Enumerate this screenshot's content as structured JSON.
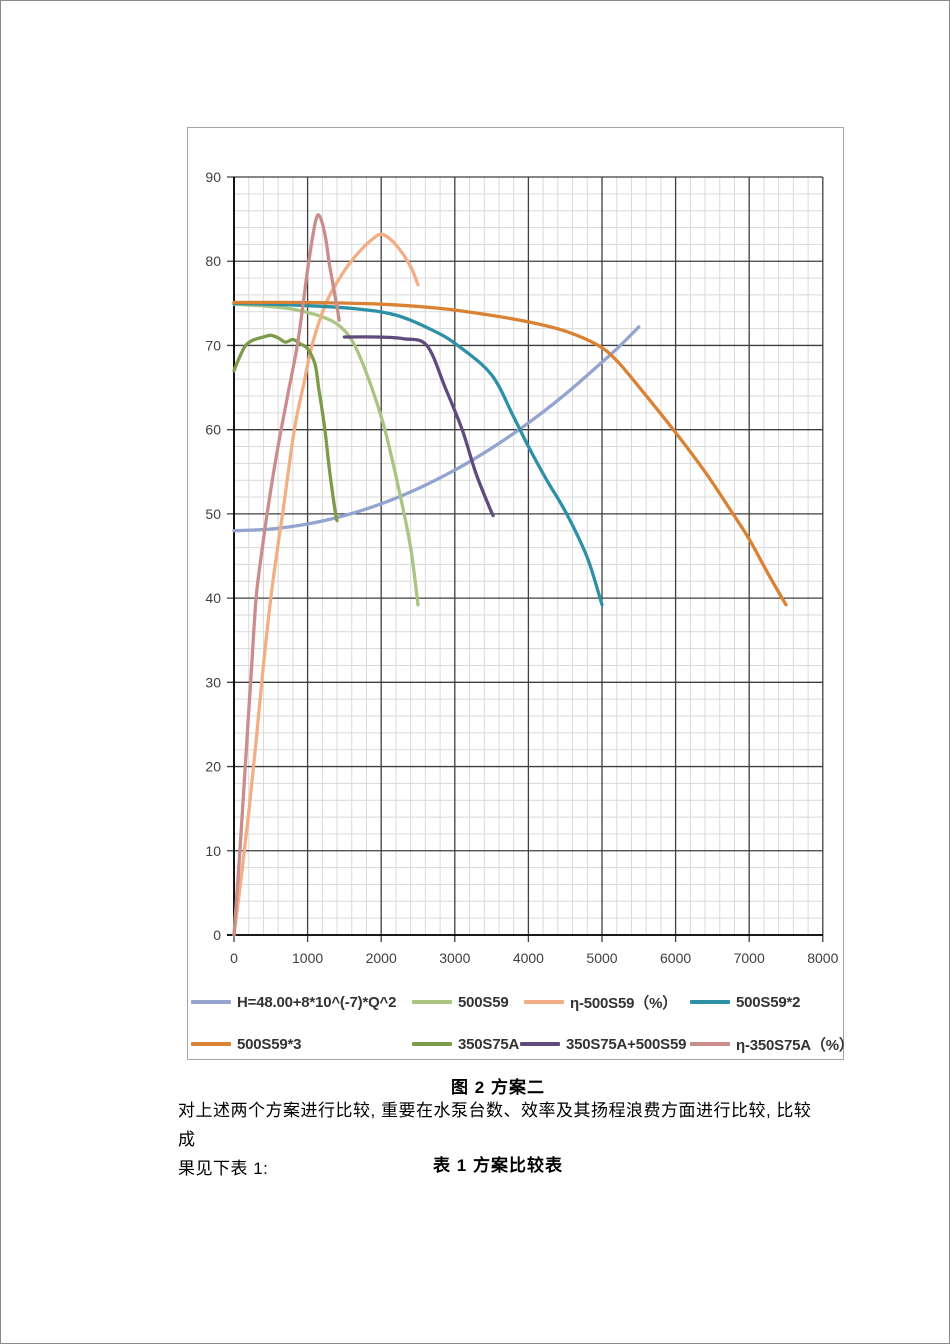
{
  "page": {
    "captions": {
      "figure": "图 2  方案二",
      "table": "表 1  方案比较表"
    },
    "paragraph": {
      "line1": "对上述两个方案进行比较, 重要在水泵台数、效率及其扬程浪费方面进行比较, 比较成",
      "line2": "果见下表 1:"
    }
  },
  "colors": {
    "page_border": "#8a8a8a",
    "chart_border": "#a6a6a6",
    "grid_minor": "#d9d9d9",
    "grid_major": "#3f3f3f",
    "axis": "#000000",
    "tick_label": "#3f3f3f",
    "legend_text": "#333333"
  },
  "chart_data": {
    "type": "line",
    "title": "",
    "xlabel": "",
    "ylabel": "",
    "xlim": [
      0,
      8000
    ],
    "ylim": [
      0,
      90
    ],
    "x_ticks": [
      0,
      1000,
      2000,
      3000,
      4000,
      5000,
      6000,
      7000,
      8000
    ],
    "y_ticks": [
      0,
      10,
      20,
      30,
      40,
      50,
      60,
      70,
      80,
      90
    ],
    "x_major_step": 1000,
    "x_minor_step": 200,
    "y_major_step": 10,
    "y_minor_step": 2,
    "grid": "major-and-minor",
    "legend_position": "bottom",
    "series": [
      {
        "name": "H=48.00+8*10^(-7)*Q^2",
        "color": "#93a4ce",
        "points": [
          [
            0,
            48
          ],
          [
            500,
            48.2
          ],
          [
            1000,
            48.8
          ],
          [
            1500,
            49.8
          ],
          [
            2000,
            51.2
          ],
          [
            2500,
            53.0
          ],
          [
            3000,
            55.2
          ],
          [
            3500,
            57.8
          ],
          [
            4000,
            60.8
          ],
          [
            4500,
            64.2
          ],
          [
            5000,
            68.0
          ],
          [
            5250,
            70.0
          ],
          [
            5500,
            72.2
          ]
        ]
      },
      {
        "name": "500S59",
        "color": "#a9c581",
        "points": [
          [
            0,
            74.9
          ],
          [
            400,
            74.7
          ],
          [
            800,
            74.3
          ],
          [
            1200,
            73.4
          ],
          [
            1450,
            72.2
          ],
          [
            1640,
            70
          ],
          [
            1850,
            65.5
          ],
          [
            2050,
            60
          ],
          [
            2250,
            52.5
          ],
          [
            2400,
            46
          ],
          [
            2500,
            39.2
          ]
        ]
      },
      {
        "name": "η-500S59（%）",
        "color": "#f2ae84",
        "points": [
          [
            0,
            0
          ],
          [
            100,
            7
          ],
          [
            200,
            14.5
          ],
          [
            300,
            23
          ],
          [
            400,
            32
          ],
          [
            500,
            40
          ],
          [
            600,
            46.5
          ],
          [
            660,
            50
          ],
          [
            820,
            60
          ],
          [
            950,
            65.5
          ],
          [
            1060,
            70
          ],
          [
            1250,
            75
          ],
          [
            1450,
            78.2
          ],
          [
            1650,
            80.6
          ],
          [
            1850,
            82.4
          ],
          [
            2000,
            83.2
          ],
          [
            2150,
            82.4
          ],
          [
            2300,
            80.8
          ],
          [
            2420,
            79
          ],
          [
            2500,
            77.2
          ]
        ]
      },
      {
        "name": "500S59*2",
        "color": "#2e90a6",
        "points": [
          [
            0,
            75
          ],
          [
            800,
            74.8
          ],
          [
            1600,
            74.4
          ],
          [
            2200,
            73.6
          ],
          [
            2700,
            71.8
          ],
          [
            3040,
            70
          ],
          [
            3500,
            66.5
          ],
          [
            3800,
            61.5
          ],
          [
            4000,
            58
          ],
          [
            4250,
            54
          ],
          [
            4520,
            50
          ],
          [
            4800,
            44.8
          ],
          [
            5000,
            39.2
          ]
        ]
      },
      {
        "name": "500S59*3",
        "color": "#da8233",
        "points": [
          [
            0,
            75.1
          ],
          [
            1000,
            75.1
          ],
          [
            2000,
            74.9
          ],
          [
            2800,
            74.4
          ],
          [
            3400,
            73.7
          ],
          [
            4000,
            72.8
          ],
          [
            4500,
            71.7
          ],
          [
            4950,
            70
          ],
          [
            5200,
            68.2
          ],
          [
            5500,
            65.1
          ],
          [
            5970,
            60
          ],
          [
            6400,
            55
          ],
          [
            6780,
            50
          ],
          [
            7000,
            47
          ],
          [
            7250,
            43
          ],
          [
            7500,
            39.2
          ]
        ]
      },
      {
        "name": "350S75A",
        "color": "#7d9c49",
        "points": [
          [
            0,
            67
          ],
          [
            60,
            68.3
          ],
          [
            150,
            69.9
          ],
          [
            250,
            70.6
          ],
          [
            400,
            71
          ],
          [
            500,
            71.2
          ],
          [
            600,
            70.9
          ],
          [
            700,
            70.4
          ],
          [
            800,
            70.7
          ],
          [
            900,
            70.2
          ],
          [
            1000,
            69.6
          ],
          [
            1100,
            67.8
          ],
          [
            1150,
            65
          ],
          [
            1235,
            60
          ],
          [
            1300,
            55
          ],
          [
            1380,
            50
          ],
          [
            1400,
            49.2
          ]
        ]
      },
      {
        "name": "350S75A+500S59",
        "color": "#5f4b7e",
        "points": [
          [
            1500,
            71
          ],
          [
            1950,
            71
          ],
          [
            2300,
            70.8
          ],
          [
            2620,
            70
          ],
          [
            2870,
            65
          ],
          [
            3100,
            60
          ],
          [
            3280,
            55
          ],
          [
            3460,
            51
          ],
          [
            3520,
            49.8
          ]
        ]
      },
      {
        "name": "η-350S75A（%）",
        "color": "#c98d8b",
        "points": [
          [
            0,
            0
          ],
          [
            80,
            10
          ],
          [
            160,
            21
          ],
          [
            240,
            32
          ],
          [
            300,
            40
          ],
          [
            370,
            45
          ],
          [
            450,
            50
          ],
          [
            540,
            55
          ],
          [
            640,
            60
          ],
          [
            750,
            65
          ],
          [
            860,
            70
          ],
          [
            940,
            75
          ],
          [
            1000,
            79
          ],
          [
            1060,
            82.5
          ],
          [
            1110,
            84.8
          ],
          [
            1150,
            85.5
          ],
          [
            1200,
            84.5
          ],
          [
            1250,
            82.5
          ],
          [
            1290,
            80
          ],
          [
            1340,
            77.5
          ],
          [
            1390,
            75
          ],
          [
            1430,
            73
          ]
        ]
      }
    ]
  }
}
